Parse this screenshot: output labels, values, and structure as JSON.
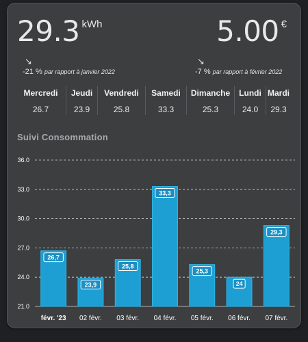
{
  "kpi_left": {
    "value": "29.3",
    "unit": "kWh"
  },
  "kpi_right": {
    "value": "5.00",
    "unit": "€"
  },
  "delta_left": {
    "arrow": "↘",
    "percent": "-21 %",
    "text": "par rapport à janvier 2022"
  },
  "delta_right": {
    "arrow": "↘",
    "percent": "-7 %",
    "text": "par rapport à février 2022"
  },
  "days": [
    {
      "name": "Mercredi",
      "value": "26.7"
    },
    {
      "name": "Jeudi",
      "value": "23.9"
    },
    {
      "name": "Vendredi",
      "value": "25.8"
    },
    {
      "name": "Samedi",
      "value": "33.3"
    },
    {
      "name": "Dimanche",
      "value": "25.3"
    },
    {
      "name": "Lundi",
      "value": "24.0"
    },
    {
      "name": "Mardi",
      "value": "29.3"
    }
  ],
  "chart_title": "Suivi Consommation",
  "colors": {
    "bar": "#1e9fd3",
    "bar_border": "#2fb6ea",
    "card": "#3d3e40",
    "label_bg": "#1c90c4"
  },
  "chart_data": {
    "type": "bar",
    "categories": [
      "févr. '23",
      "02 févr.",
      "03 févr.",
      "04 févr.",
      "05 févr.",
      "06 févr.",
      "07 févr."
    ],
    "values": [
      26.7,
      23.9,
      25.8,
      33.3,
      25.3,
      24.0,
      29.3
    ],
    "data_labels": [
      "26,7",
      "23,9",
      "25,8",
      "33,3",
      "25,3",
      "24",
      "29,3"
    ],
    "yticks": [
      "36.0",
      "33.0",
      "30.0",
      "27.0",
      "24.0",
      "21.0"
    ],
    "ylim": [
      21,
      36
    ],
    "grid": true,
    "title": "",
    "xlabel": "",
    "ylabel": ""
  }
}
